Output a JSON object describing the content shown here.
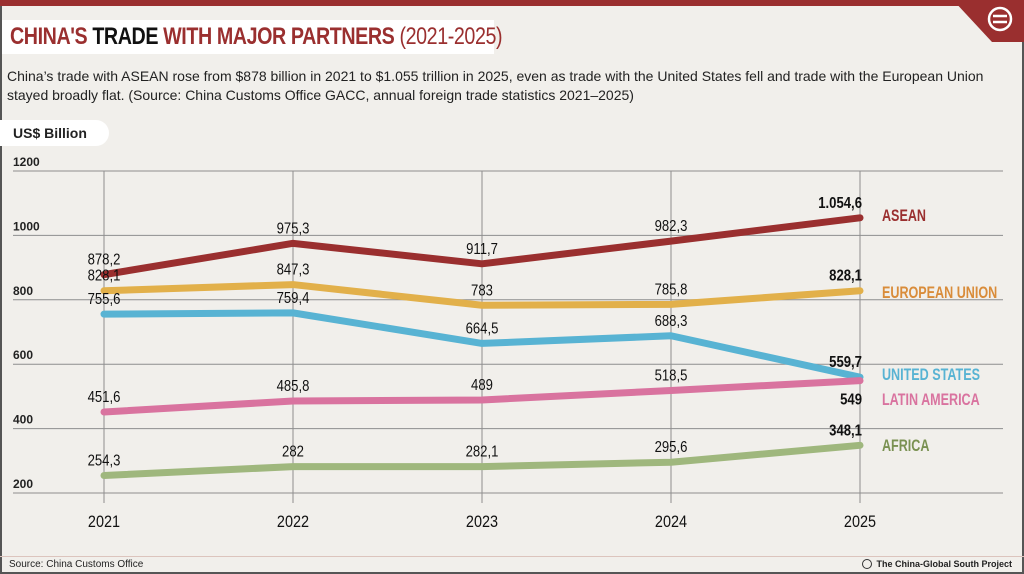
{
  "header": {
    "title_part1": "CHINA'S ",
    "title_part2": "TRADE",
    "title_part3": " WITH MAJOR PARTNERS ",
    "title_part4": "(2021-2025)",
    "subtitle": "China’s trade with ASEAN rose from $878 billion in 2021 to $1.055 trillion in 2025, even as trade with the United States fell and trade with the European Union stayed broadly flat. (Source: China Customs Office GACC, annual foreign trade statistics 2021–2025)",
    "logo_icon": "cgsp-logo-icon"
  },
  "footer": {
    "source": "Source: China Customs Office",
    "credit": "The China-Global South Project"
  },
  "colors": {
    "brand": "#9a2f2f",
    "background": "#f1efeb",
    "grid": "#8a8a8a"
  },
  "chart_data": {
    "type": "line",
    "title": "CHINA'S TRADE WITH MAJOR PARTNERS (2021-2025)",
    "xlabel": "",
    "ylabel": "US$ Billion",
    "x": [
      "2021",
      "2022",
      "2023",
      "2024",
      "2025"
    ],
    "ylim": [
      200,
      1200
    ],
    "yticks": [
      "1200",
      "1000",
      "800",
      "600",
      "400",
      "200"
    ],
    "ytick_values": [
      1200,
      1000,
      800,
      600,
      400,
      200
    ],
    "grid": true,
    "legend": "right-end labels",
    "series": [
      {
        "name": "ASEAN",
        "color": "#9a2f2f",
        "label_color": "#9a2f2f",
        "values": [
          878.2,
          975.3,
          911.7,
          982.3,
          1054.6
        ],
        "labels": [
          "878,2",
          "975,3",
          "911,7",
          "982,3",
          "1.054,6"
        ]
      },
      {
        "name": "EUROPEAN UNION",
        "color": "#e2b04a",
        "label_color": "#d98c3a",
        "values": [
          828.1,
          847.3,
          783,
          785.8,
          828.1
        ],
        "labels": [
          "828,1",
          "847,3",
          "783",
          "785,8",
          "828,1"
        ]
      },
      {
        "name": "UNITED STATES",
        "color": "#58b3d3",
        "label_color": "#58b3d3",
        "values": [
          755.6,
          759.4,
          664.5,
          688.3,
          559.7
        ],
        "labels": [
          "755,6",
          "759,4",
          "664,5",
          "688,3",
          "559,7"
        ]
      },
      {
        "name": "LATIN AMERICA",
        "color": "#d9739f",
        "label_color": "#d9739f",
        "values": [
          451.6,
          485.8,
          489,
          518.5,
          549
        ],
        "labels": [
          "451,6",
          "485,8",
          "489",
          "518,5",
          "549"
        ]
      },
      {
        "name": "AFRICA",
        "color": "#9fb77d",
        "label_color": "#7a9152",
        "values": [
          254.3,
          282,
          282.1,
          295.6,
          348.1
        ],
        "labels": [
          "254,3",
          "282",
          "282,1",
          "295,6",
          "348,1"
        ]
      }
    ]
  }
}
